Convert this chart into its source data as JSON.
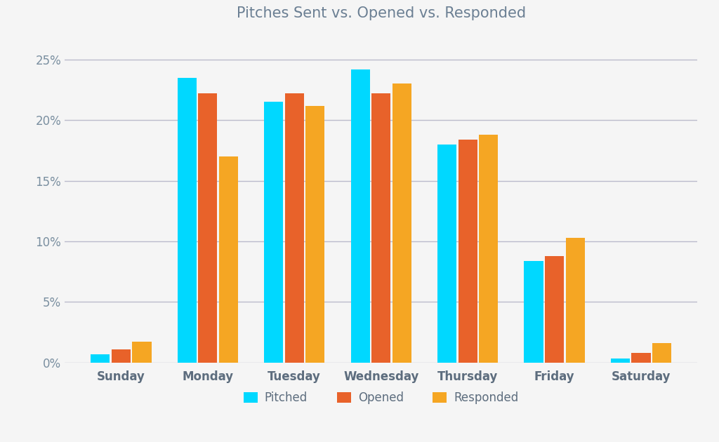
{
  "title": "Pitches Sent vs. Opened vs. Responded",
  "categories": [
    "Sunday",
    "Monday",
    "Tuesday",
    "Wednesday",
    "Thursday",
    "Friday",
    "Saturday"
  ],
  "pitched": [
    0.7,
    23.5,
    21.5,
    24.2,
    18.0,
    8.4,
    0.3
  ],
  "opened": [
    1.1,
    22.2,
    22.2,
    22.2,
    18.4,
    8.8,
    0.8
  ],
  "responded": [
    1.7,
    17.0,
    21.2,
    23.0,
    18.8,
    10.3,
    1.6
  ],
  "color_pitched": "#00D8FF",
  "color_opened": "#E8622A",
  "color_responded": "#F5A623",
  "background_color": "#F5F5F5",
  "title_color": "#6B7F93",
  "axis_label_color": "#5D6D7E",
  "tick_color": "#7A8FA0",
  "grid_color": "#BBBBCC",
  "ylim": [
    0,
    27
  ],
  "yticks": [
    0,
    5,
    10,
    15,
    20,
    25
  ],
  "bar_width": 0.22,
  "bar_gap": 0.02,
  "title_fontsize": 15,
  "tick_fontsize": 12,
  "legend_fontsize": 12,
  "legend_labels": [
    "Pitched",
    "Opened",
    "Responded"
  ]
}
